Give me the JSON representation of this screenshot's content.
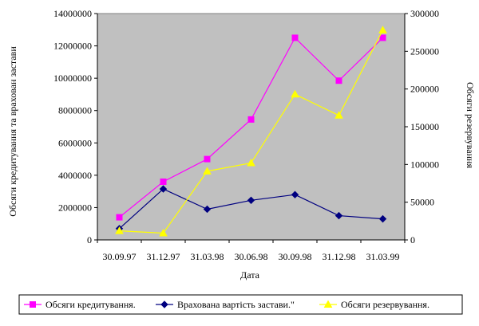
{
  "chart_data": {
    "type": "line",
    "categories": [
      "30.09.97",
      "31.12.97",
      "31.03.98",
      "30.06.98",
      "30.09.98",
      "31.12.98",
      "31.03.99"
    ],
    "xlabel": "Дата",
    "ylabel_left": "Обсяги кредитування та врахован застави",
    "ylabel_right": "Обсяги резервування",
    "ylim_left": [
      0,
      14000000
    ],
    "ylim_right": [
      0,
      300000
    ],
    "yticks_left": [
      0,
      2000000,
      4000000,
      6000000,
      8000000,
      10000000,
      12000000,
      14000000
    ],
    "yticks_right": [
      0,
      50000,
      100000,
      150000,
      200000,
      250000,
      300000
    ],
    "series": [
      {
        "name": "Обсяги кредитування.",
        "axis": "left",
        "color": "#ff00ff",
        "marker": "square",
        "values": [
          1400000,
          3600000,
          5000000,
          7450000,
          12500000,
          9850000,
          12500000
        ]
      },
      {
        "name": "Врахована  вартість застави.\"",
        "axis": "left",
        "color": "#000080",
        "marker": "diamond",
        "values": [
          700000,
          3150000,
          1900000,
          2450000,
          2800000,
          1500000,
          1300000
        ]
      },
      {
        "name": "Обсяги резервування.",
        "axis": "right",
        "color": "#ffff00",
        "marker": "triangle",
        "values": [
          12000,
          9000,
          91000,
          102000,
          193000,
          165000,
          278000
        ]
      }
    ],
    "plot_background": "#c0c0c0",
    "legend_position": "bottom"
  }
}
